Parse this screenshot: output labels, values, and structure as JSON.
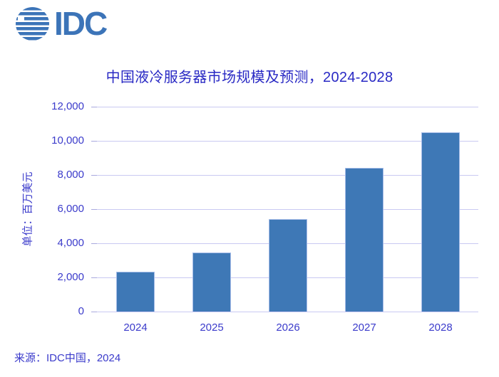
{
  "logo": {
    "text": "IDC",
    "color": "#3C74B8",
    "icon": "idc-globe-icon"
  },
  "title": "中国液冷服务器市场规模及预测，2024-2028",
  "source": "来源：IDC中国，2024",
  "chart_data": {
    "type": "bar",
    "title": "中国液冷服务器市场规模及预测，2024-2028",
    "categories": [
      "2024",
      "2025",
      "2026",
      "2027",
      "2028"
    ],
    "values": [
      2350,
      3450,
      5400,
      8400,
      10500
    ],
    "xlabel": "",
    "ylabel": "单位：百万美元",
    "ylim": [
      0,
      12000
    ],
    "ytick_step": 2000,
    "ytick_labels": [
      "0",
      "2,000",
      "4,000",
      "6,000",
      "8,000",
      "10,000",
      "12,000"
    ],
    "grid": true,
    "legend": "none",
    "colors": {
      "bar": "#3E78B6",
      "bar_border": "#A6BCE8",
      "gridline": "#C9C9F2",
      "tick": "#A9A9DE",
      "text": "#3B3BCB",
      "title": "#2929C4"
    }
  }
}
